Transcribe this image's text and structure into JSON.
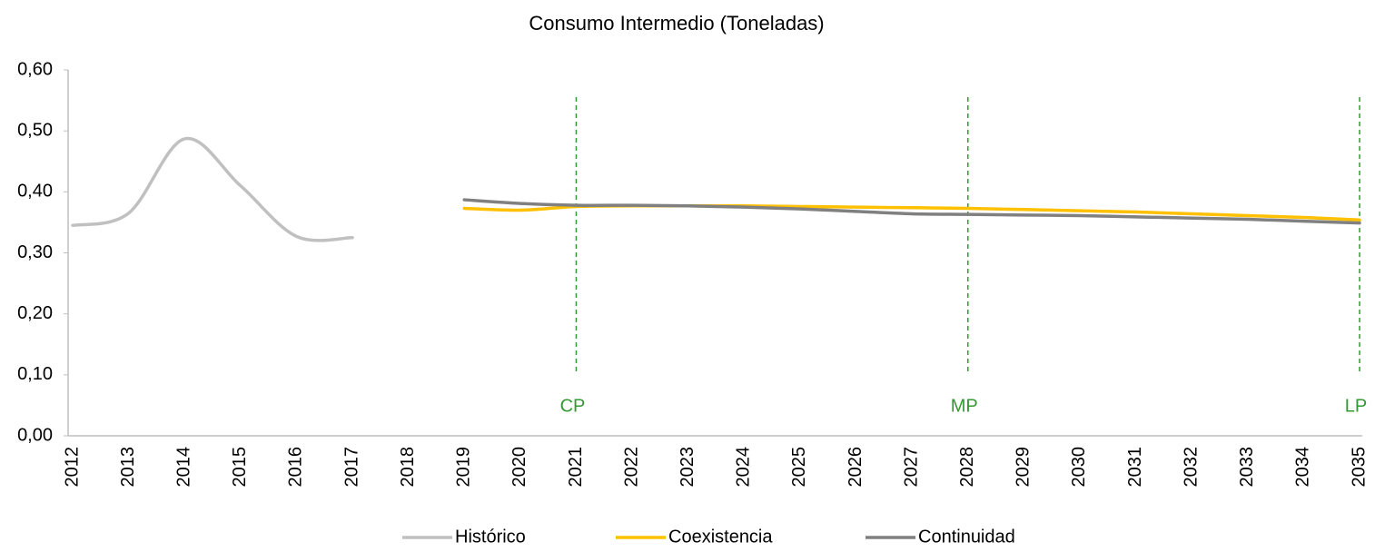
{
  "chart_data": {
    "type": "line",
    "title": "Consumo Intermedio (Toneladas)",
    "categories": [
      "2012",
      "2013",
      "2014",
      "2015",
      "2016",
      "2017",
      "2018",
      "2019",
      "2020",
      "2021",
      "2022",
      "2023",
      "2024",
      "2025",
      "2026",
      "2027",
      "2028",
      "2029",
      "2030",
      "2031",
      "2032",
      "2033",
      "2034",
      "2035"
    ],
    "series": [
      {
        "name": "Histórico",
        "color": "#c0c0c0",
        "values": [
          0.345,
          0.365,
          0.487,
          0.41,
          0.327,
          0.325,
          null,
          null,
          null,
          null,
          null,
          null,
          null,
          null,
          null,
          null,
          null,
          null,
          null,
          null,
          null,
          null,
          null,
          null
        ]
      },
      {
        "name": "Coexistencia",
        "color": "#ffc000",
        "values": [
          null,
          null,
          null,
          null,
          null,
          null,
          null,
          0.373,
          0.37,
          0.376,
          0.377,
          0.377,
          0.377,
          0.376,
          0.375,
          0.374,
          0.373,
          0.371,
          0.369,
          0.367,
          0.364,
          0.361,
          0.358,
          0.354
        ]
      },
      {
        "name": "Continuidad",
        "color": "#808080",
        "values": [
          null,
          null,
          null,
          null,
          null,
          null,
          null,
          0.387,
          0.381,
          0.378,
          0.378,
          0.377,
          0.375,
          0.372,
          0.368,
          0.364,
          0.363,
          0.362,
          0.361,
          0.359,
          0.357,
          0.355,
          0.352,
          0.349
        ]
      }
    ],
    "ylim": [
      0,
      0.6
    ],
    "yticks": [
      {
        "value": 0,
        "label": "0,00"
      },
      {
        "value": 0.1,
        "label": "0,10"
      },
      {
        "value": 0.2,
        "label": "0,20"
      },
      {
        "value": 0.3,
        "label": "0,30"
      },
      {
        "value": 0.4,
        "label": "0,40"
      },
      {
        "value": 0.5,
        "label": "0,50"
      },
      {
        "value": 0.6,
        "label": "0,60"
      }
    ],
    "annotations": [
      {
        "text": "CP",
        "x": "2021"
      },
      {
        "text": "MP",
        "x": "2028"
      },
      {
        "text": "LP",
        "x": "2035"
      }
    ],
    "annotation_color": "#339933",
    "grid": false,
    "legend": "bottom"
  }
}
